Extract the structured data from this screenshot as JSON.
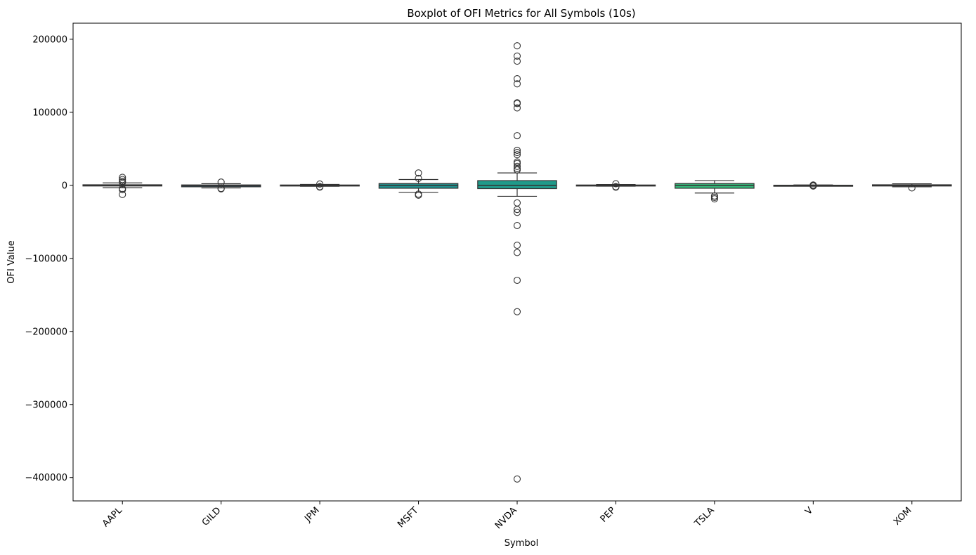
{
  "chart_data": {
    "type": "boxplot",
    "title": "Boxplot of OFI Metrics for All Symbols (10s)",
    "xlabel": "Symbol",
    "ylabel": "OFI Value",
    "ylim": [
      -432000,
      222000
    ],
    "yticks": [
      -400000,
      -300000,
      -200000,
      -100000,
      0,
      100000,
      200000
    ],
    "ytick_labels": [
      "−400000",
      "−300000",
      "−200000",
      "−100000",
      "0",
      "100000",
      "200000"
    ],
    "grid": false,
    "legend": "none",
    "categories": [
      "AAPL",
      "GILD",
      "JPM",
      "MSFT",
      "NVDA",
      "PEP",
      "TSLA",
      "V",
      "XOM"
    ],
    "series": [
      {
        "category": "AAPL",
        "color": "#3b528b",
        "whisker_low": -3300,
        "q1": -900,
        "median": 0,
        "q3": 800,
        "whisker_high": 3300,
        "outliers": [
          11000,
          8000,
          5500,
          4000,
          -4500,
          -6000,
          -12500
        ]
      },
      {
        "category": "GILD",
        "color": "#2e6f8e",
        "whisker_low": -3600,
        "q1": -2000,
        "median": -600,
        "q3": 600,
        "whisker_high": 2300,
        "outliers": [
          4500,
          -4200,
          -4800
        ]
      },
      {
        "category": "JPM",
        "color": "#29788e",
        "whisker_low": -1300,
        "q1": -500,
        "median": 0,
        "q3": 500,
        "whisker_high": 1300,
        "outliers": [
          1800,
          -1800,
          -2400
        ]
      },
      {
        "category": "MSFT",
        "color": "#21908d",
        "whisker_low": -9500,
        "q1": -4000,
        "median": 0,
        "q3": 2500,
        "whisker_high": 8000,
        "outliers": [
          17000,
          9500,
          -12000,
          -13500
        ]
      },
      {
        "category": "NVDA",
        "color": "#1f9a8a",
        "whisker_low": -15000,
        "q1": -4500,
        "median": 0,
        "q3": 6500,
        "whisker_high": 17000,
        "outliers": [
          191000,
          177000,
          170000,
          146000,
          139000,
          113000,
          112000,
          106000,
          68000,
          48000,
          45000,
          42000,
          32000,
          30000,
          26000,
          23000,
          21000,
          -24000,
          -33000,
          -37000,
          -55000,
          -82000,
          -92000,
          -130000,
          -173000,
          -402000
        ]
      },
      {
        "category": "PEP",
        "color": "#27ad81",
        "whisker_low": -1200,
        "q1": -500,
        "median": 0,
        "q3": 500,
        "whisker_high": 1200,
        "outliers": [
          2200,
          -1800,
          -2500
        ]
      },
      {
        "category": "TSLA",
        "color": "#35b779",
        "whisker_low": -10500,
        "q1": -4000,
        "median": 0,
        "q3": 2500,
        "whisker_high": 6500,
        "outliers": [
          -14500,
          -16500,
          -18500
        ]
      },
      {
        "category": "V",
        "color": "#5ec962",
        "whisker_low": -600,
        "q1": -200,
        "median": 0,
        "q3": 200,
        "whisker_high": 600,
        "outliers": [
          500,
          -500,
          -1000
        ]
      },
      {
        "category": "XOM",
        "color": "#7ad151",
        "whisker_low": -2000,
        "q1": -900,
        "median": 0,
        "q3": 800,
        "whisker_high": 2200,
        "outliers": [
          -3500
        ]
      }
    ]
  }
}
